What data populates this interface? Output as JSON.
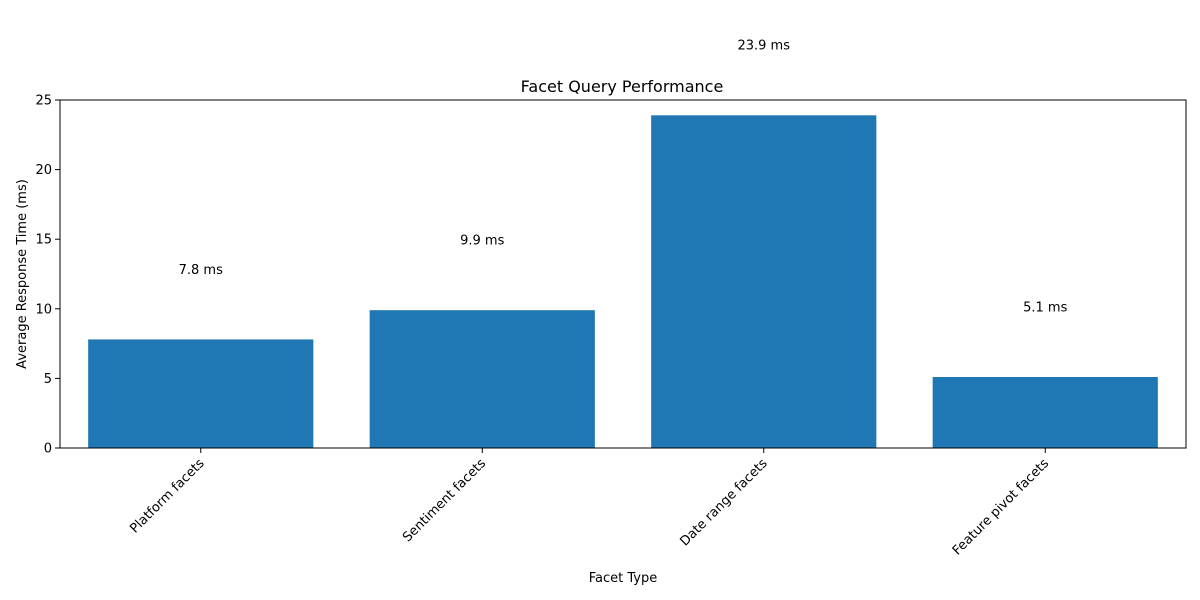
{
  "chart_data": {
    "type": "bar",
    "title": "Facet Query Performance",
    "xlabel": "Facet Type",
    "ylabel": "Average Response Time (ms)",
    "categories": [
      "Platform facets",
      "Sentiment facets",
      "Date range facets",
      "Feature pivot facets"
    ],
    "values": [
      7.8,
      9.9,
      23.9,
      5.1
    ],
    "data_labels": [
      "7.8 ms",
      "9.9 ms",
      "23.9 ms",
      "5.1 ms"
    ],
    "ylim": [
      0,
      25
    ],
    "yticks": [
      0,
      5,
      10,
      15,
      20,
      25
    ],
    "ytick_labels": [
      "0",
      "5",
      "10",
      "15",
      "20",
      "25"
    ],
    "bar_color": "#1f77b4",
    "grid": false,
    "legend": false
  }
}
